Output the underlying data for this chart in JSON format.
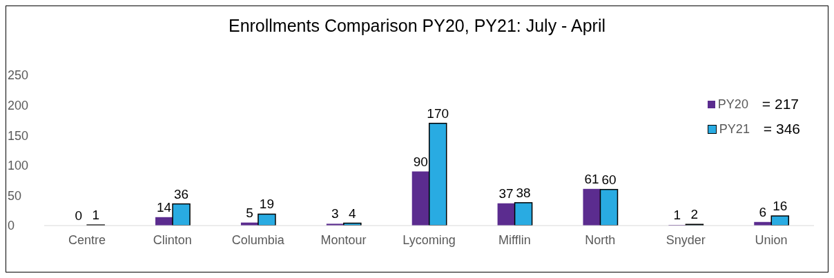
{
  "chart_data": {
    "type": "bar",
    "title": "Enrollments Comparison PY20, PY21: July - April",
    "categories": [
      "Centre",
      "Clinton",
      "Columbia",
      "Montour",
      "Lycoming",
      "Mifflin",
      "North",
      "Snyder",
      "Union"
    ],
    "series": [
      {
        "name": "PY20",
        "color": "#5b2c8f",
        "values": [
          0,
          14,
          5,
          3,
          90,
          37,
          61,
          1,
          6
        ]
      },
      {
        "name": "PY21",
        "color": "#29abe2",
        "values": [
          1,
          36,
          19,
          4,
          170,
          38,
          60,
          2,
          16
        ]
      }
    ],
    "annotations": [
      "= 217",
      "= 346"
    ],
    "ylim": [
      0,
      250
    ],
    "yticks": [
      0,
      50,
      100,
      150,
      200,
      250
    ],
    "grid": false,
    "legend": "top right",
    "data_labels": true
  }
}
